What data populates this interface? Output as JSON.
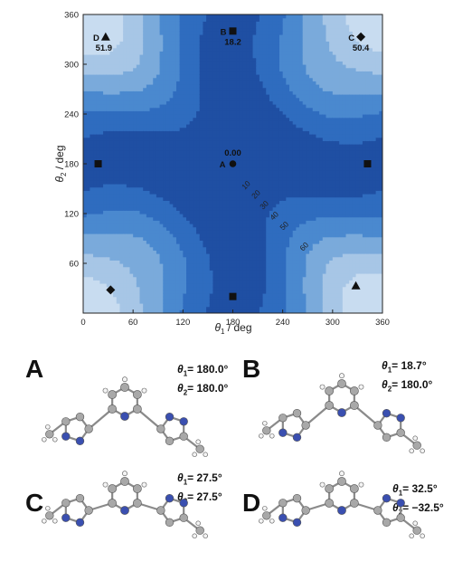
{
  "chart_data": {
    "type": "heatmap",
    "xlabel": "θ1 / deg",
    "ylabel": "θ2 / deg",
    "xlim": [
      0,
      360
    ],
    "ylim": [
      0,
      360
    ],
    "xticks": [
      0,
      60,
      120,
      180,
      240,
      300,
      360
    ],
    "yticks": [
      60,
      120,
      180,
      240,
      300,
      360
    ],
    "contour_levels": [
      10,
      20,
      30,
      40,
      50,
      60
    ],
    "contour_labels": [
      "10",
      "20",
      "30",
      "40",
      "50",
      "60"
    ],
    "colors": [
      "#1f4fa3",
      "#2f6cbf",
      "#4a89cf",
      "#7aaadb",
      "#a7c6e6",
      "#c8dcf0",
      "#e3eefa"
    ],
    "minima": [
      {
        "label": "A",
        "energy": "0.00",
        "theta1": 180,
        "theta2": 180,
        "marker": "circle"
      },
      {
        "label": "B",
        "energy": "18.2",
        "theta1": 180,
        "theta2": 340,
        "marker": "square"
      },
      {
        "label": "C",
        "energy": "50.4",
        "theta1": 334,
        "theta2": 333,
        "marker": "diamond"
      },
      {
        "label": "D",
        "energy": "51.9",
        "theta1": 27,
        "theta2": 333,
        "marker": "triangle"
      }
    ],
    "extra_markers": [
      {
        "theta1": 180,
        "theta2": 20,
        "marker": "square"
      },
      {
        "theta1": 18,
        "theta2": 180,
        "marker": "square"
      },
      {
        "theta1": 342,
        "theta2": 180,
        "marker": "square"
      },
      {
        "theta1": 33,
        "theta2": 28,
        "marker": "diamond"
      },
      {
        "theta1": 328,
        "theta2": 33,
        "marker": "triangle"
      }
    ]
  },
  "structures": [
    {
      "letter": "A",
      "theta1_label": "θ",
      "theta1_sub": "1",
      "theta1_value": "= 180.0°",
      "theta2_label": "θ",
      "theta2_sub": "2",
      "theta2_value": "= 180.0°"
    },
    {
      "letter": "B",
      "theta1_label": "θ",
      "theta1_sub": "1",
      "theta1_value": "=   18.7°",
      "theta2_label": "θ",
      "theta2_sub": "2",
      "theta2_value": "= 180.0°"
    },
    {
      "letter": "C",
      "theta1_label": "θ",
      "theta1_sub": "1",
      "theta1_value": "= 27.5°",
      "theta2_label": "θ",
      "theta2_sub": "2",
      "theta2_value": "= 27.5°"
    },
    {
      "letter": "D",
      "theta1_label": "θ",
      "theta1_sub": "1",
      "theta1_value": "=  32.5°",
      "theta2_label": "θ",
      "theta2_sub": "2",
      "theta2_value": "= −32.5°"
    }
  ]
}
